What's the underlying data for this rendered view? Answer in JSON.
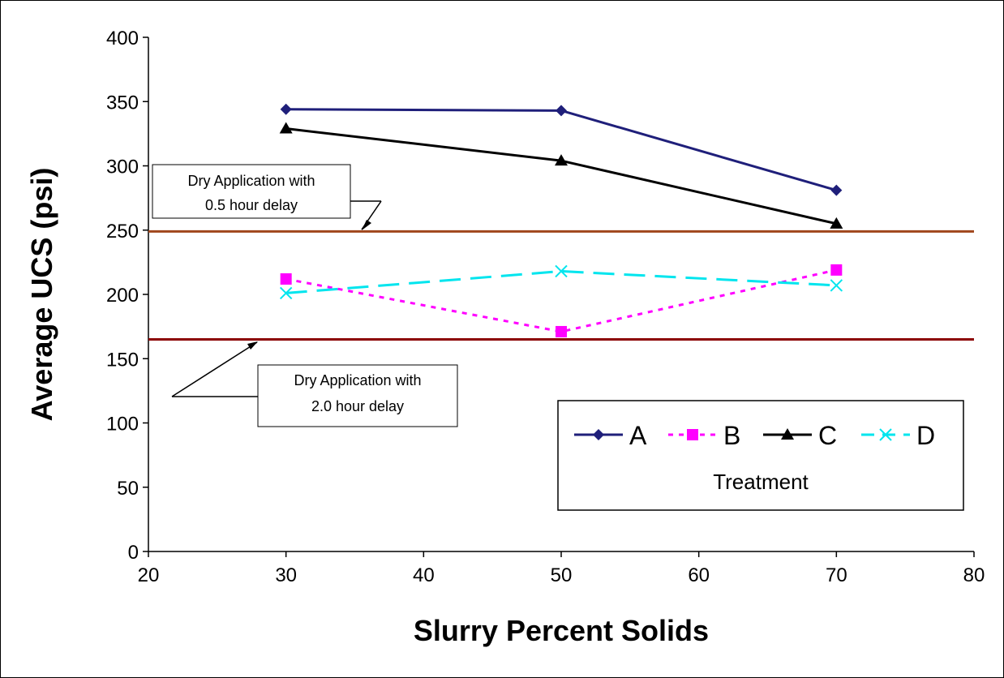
{
  "chart_data": {
    "type": "line",
    "title": "",
    "xlabel": "Slurry Percent Solids",
    "ylabel": "Average UCS (psi)",
    "xlim": [
      20,
      80
    ],
    "ylim": [
      0,
      400
    ],
    "xticks": [
      20,
      30,
      40,
      50,
      60,
      70,
      80
    ],
    "yticks": [
      0,
      50,
      100,
      150,
      200,
      250,
      300,
      350,
      400
    ],
    "grid": false,
    "x": [
      30,
      50,
      70
    ],
    "series": [
      {
        "name": "A",
        "values": [
          344,
          343,
          281
        ],
        "color": "#1f1f7a",
        "marker": "diamond",
        "dash": "solid"
      },
      {
        "name": "B",
        "values": [
          212,
          171,
          219
        ],
        "color": "#ff00ff",
        "marker": "square",
        "dash": "dotted"
      },
      {
        "name": "C",
        "values": [
          329,
          304,
          255
        ],
        "color": "#000000",
        "marker": "triangle",
        "dash": "solid"
      },
      {
        "name": "D",
        "values": [
          201,
          218,
          207
        ],
        "color": "#00e5ee",
        "marker": "x",
        "dash": "dashed"
      }
    ],
    "reference_lines": [
      {
        "y": 249,
        "color": "#a0461c",
        "label_lines": [
          "Dry Application with",
          "0.5 hour delay"
        ]
      },
      {
        "y": 165,
        "color": "#8b0000",
        "label_lines": [
          "Dry Application with",
          "2.0 hour delay"
        ]
      }
    ],
    "legend": {
      "title": "Treatment",
      "placement": "bottom-right"
    }
  }
}
